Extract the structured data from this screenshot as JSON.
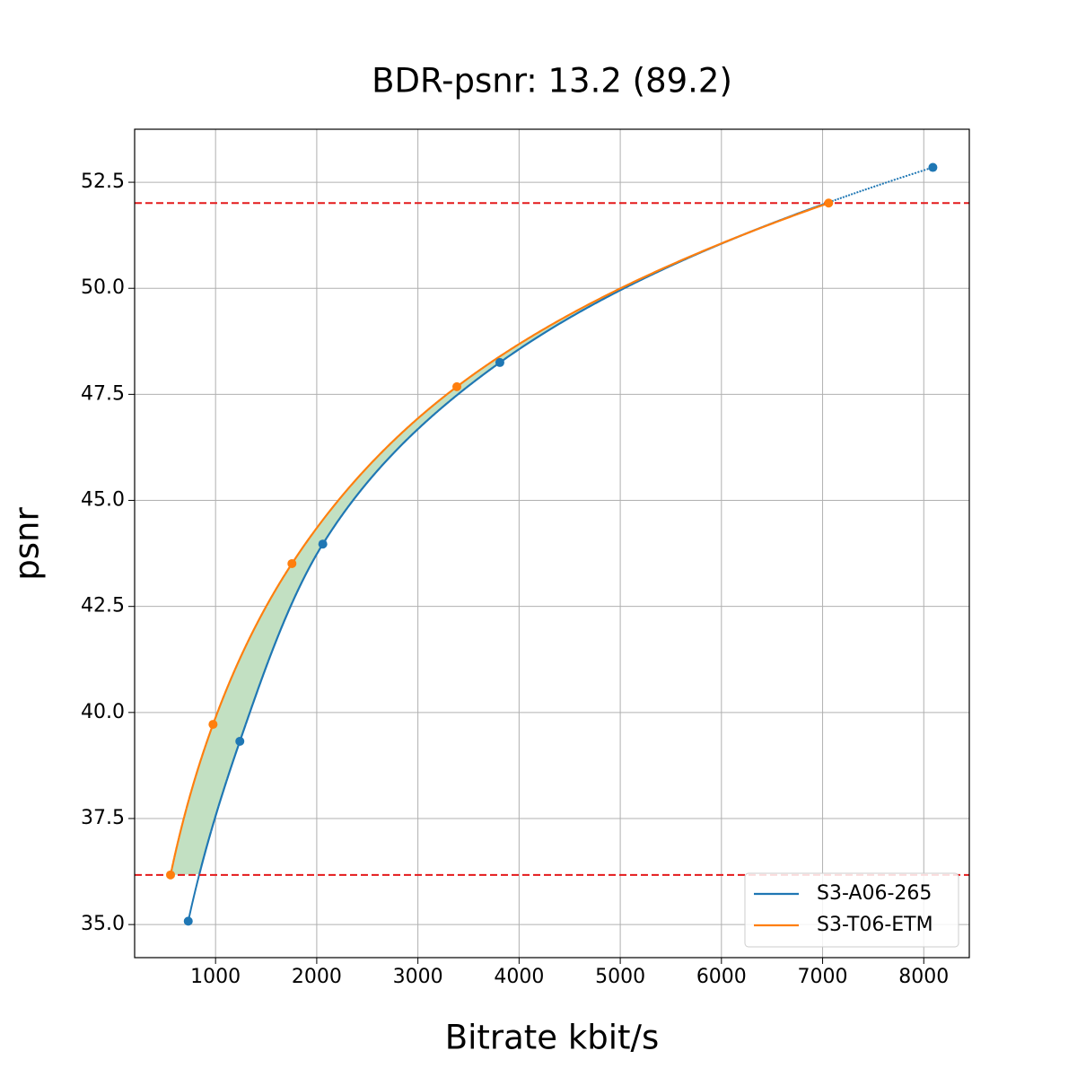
{
  "chart_data": {
    "type": "line",
    "title": "BDR-psnr: 13.2 (89.2)",
    "x_label": "Bitrate kbit/s",
    "y_label": "psnr",
    "series": [
      {
        "name": "S3-A06-265",
        "color": "#1f77b4",
        "x": [
          730,
          1240,
          2060,
          3810,
          8090
        ],
        "values": [
          35.08,
          39.32,
          43.97,
          48.25,
          52.85
        ]
      },
      {
        "name": "S3-T06-ETM",
        "color": "#ff7f0e",
        "x": [
          555,
          975,
          1755,
          3385,
          7060
        ],
        "values": [
          36.17,
          39.72,
          43.51,
          47.68,
          52.01
        ]
      }
    ],
    "hlines": [
      36.17,
      52.01
    ],
    "hline_color": "#e41a1c",
    "fill_color": "#c2e0c2",
    "xlim": [
      200,
      8450
    ],
    "xticks": [
      1000,
      2000,
      3000,
      4000,
      5000,
      6000,
      7000,
      8000
    ],
    "ylim": [
      34.22,
      53.75
    ],
    "yticks": [
      {
        "value": 35,
        "label": "35.0"
      },
      37.5,
      {
        "value": 40,
        "label": "40.0"
      },
      42.5,
      {
        "value": 45,
        "label": "45.0"
      },
      47.5,
      {
        "value": 50,
        "label": "50.0"
      },
      52.5
    ],
    "grid": true,
    "legend": "lower right"
  }
}
